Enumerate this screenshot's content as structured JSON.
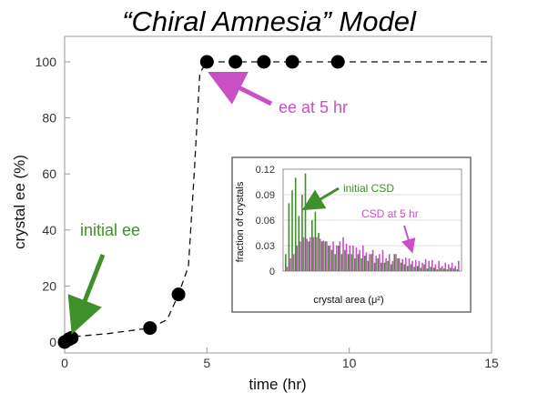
{
  "page": {
    "title": "“Chiral Amnesia” Model"
  },
  "colors": {
    "green": "#3f8f2a",
    "magenta": "#c94fc4",
    "points": "#000000"
  },
  "chart_data": [
    {
      "type": "scatter",
      "title": "",
      "xlabel": "time (hr)",
      "ylabel": "crystal ee (%)",
      "xlim": [
        0,
        15
      ],
      "ylim": [
        0,
        100
      ],
      "x_ticks": [
        "0",
        "5",
        "10",
        "15"
      ],
      "y_ticks": [
        "0",
        "20",
        "40",
        "60",
        "80",
        "100"
      ],
      "grid": false,
      "series": [
        {
          "style": "markers with dashed line",
          "points": [
            {
              "x": 0.0,
              "y": 0
            },
            {
              "x": 0.15,
              "y": 1
            },
            {
              "x": 0.25,
              "y": 1.5
            },
            {
              "x": 3.0,
              "y": 5
            },
            {
              "x": 4.0,
              "y": 17
            },
            {
              "x": 5.0,
              "y": 100
            },
            {
              "x": 6.0,
              "y": 100
            },
            {
              "x": 7.0,
              "y": 100
            },
            {
              "x": 8.0,
              "y": 100
            },
            {
              "x": 9.6,
              "y": 100
            }
          ]
        }
      ],
      "dashed_curve": [
        {
          "x": 0.0,
          "y": 0
        },
        {
          "x": 0.4,
          "y": 2
        },
        {
          "x": 1.5,
          "y": 3
        },
        {
          "x": 3.0,
          "y": 5
        },
        {
          "x": 3.6,
          "y": 8
        },
        {
          "x": 4.0,
          "y": 17
        },
        {
          "x": 4.35,
          "y": 27
        },
        {
          "x": 4.55,
          "y": 60
        },
        {
          "x": 4.75,
          "y": 96
        },
        {
          "x": 5.0,
          "y": 100
        },
        {
          "x": 15.0,
          "y": 100
        }
      ],
      "annotations": [
        {
          "text": "initial ee",
          "color": "green"
        },
        {
          "text": "ee at 5 hr",
          "color": "magenta"
        }
      ]
    },
    {
      "type": "bar",
      "title": "",
      "xlabel": "crystal area (μ²)",
      "ylabel": "fraction of crystals",
      "ylim": [
        0,
        0.12
      ],
      "y_ticks": [
        "0",
        "0.03",
        "0.06",
        "0.09",
        "0.12"
      ],
      "grid": true,
      "series": [
        {
          "color": "green",
          "values": [
            0.02,
            0.08,
            0.095,
            0.11,
            0.065,
            0.09,
            0.115,
            0.035,
            0.06,
            0.07,
            0.045,
            0.035,
            0.035,
            0.03,
            0.025,
            0.02,
            0.03,
            0.02,
            0.025,
            0.02,
            0.02,
            0.015,
            0.02,
            0.015,
            0.018,
            0.012,
            0.02,
            0.01,
            0.015,
            0.01,
            0.01,
            0.012,
            0.008,
            0.02,
            0.015,
            0.01,
            0.008,
            0.006,
            0.008,
            0.005,
            0.006,
            0.004,
            0.008,
            0.003,
            0.005,
            0.004,
            0.002,
            0.004,
            0.003,
            0.002,
            0.004,
            0.003,
            0.002
          ]
        },
        {
          "color": "magenta",
          "values": [
            0.005,
            0.015,
            0.02,
            0.03,
            0.035,
            0.04,
            0.038,
            0.04,
            0.04,
            0.04,
            0.038,
            0.036,
            0.035,
            0.03,
            0.035,
            0.03,
            0.035,
            0.04,
            0.032,
            0.03,
            0.03,
            0.028,
            0.025,
            0.03,
            0.022,
            0.02,
            0.025,
            0.018,
            0.02,
            0.025,
            0.015,
            0.02,
            0.012,
            0.02,
            0.015,
            0.014,
            0.016,
            0.015,
            0.012,
            0.013,
            0.012,
            0.01,
            0.014,
            0.012,
            0.013,
            0.008,
            0.012,
            0.006,
            0.01,
            0.008,
            0.01,
            0.006,
            0.012
          ]
        }
      ],
      "annotations": [
        {
          "text": "initial CSD",
          "color": "green"
        },
        {
          "text": "CSD at 5 hr",
          "color": "magenta"
        }
      ]
    }
  ]
}
